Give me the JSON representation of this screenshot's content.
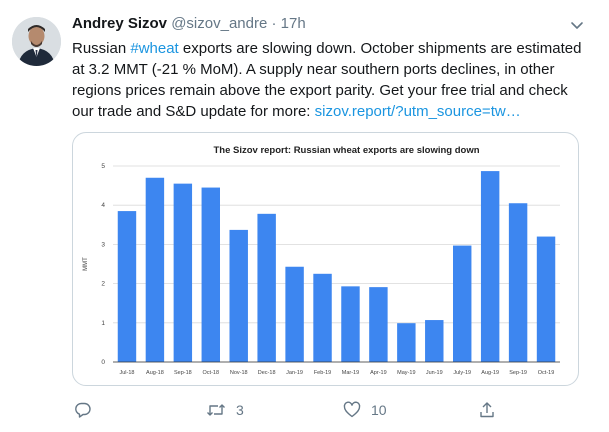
{
  "tweet": {
    "author_name": "Andrey Sizov",
    "handle": "@sizov_andre",
    "separator": "·",
    "time": "17h",
    "text": {
      "line1_a": "Russian ",
      "hashtag": "#wheat",
      "line1_b": " exports are slowing down. October shipments are estimated",
      "line2": "at 3.2 MMT (-21 % MoM). A supply near southern ports declines, in other",
      "line3": "regions prices remain above the export parity. Get your free trial and check",
      "line4_a": "our trade and S&D update for more: ",
      "link": "sizov.report/?utm_source=tw…"
    },
    "actions": {
      "reply": {
        "icon": "reply-icon",
        "count": ""
      },
      "retweet": {
        "icon": "retweet-icon",
        "count": "3"
      },
      "like": {
        "icon": "heart-icon",
        "count": "10"
      },
      "share": {
        "icon": "share-icon",
        "count": ""
      }
    }
  },
  "colors": {
    "bar": "#3d86f0",
    "link": "#1b95e0",
    "muted": "#657786",
    "border": "#ccd6dd"
  },
  "chart_data": {
    "type": "bar",
    "title": "The Sizov report: Russian wheat exports are slowing down",
    "ylabel": "MMT",
    "xlabel": "",
    "ylim": [
      0,
      5
    ],
    "yticks": [
      "0",
      "1",
      "2",
      "3",
      "4",
      "5"
    ],
    "grid": true,
    "categories": [
      "Jul-18",
      "Aug-18",
      "Sep-18",
      "Oct-18",
      "Nov-18",
      "Dec-18",
      "Jan-19",
      "Feb-19",
      "Mar-19",
      "Apr-19",
      "May-19",
      "Jun-19",
      "July-19",
      "Aug-19",
      "Sep-19",
      "Oct-19"
    ],
    "values": [
      3.85,
      4.7,
      4.55,
      4.45,
      3.37,
      3.78,
      2.43,
      2.25,
      1.93,
      1.91,
      0.99,
      1.07,
      2.97,
      4.87,
      4.05,
      3.2
    ]
  }
}
